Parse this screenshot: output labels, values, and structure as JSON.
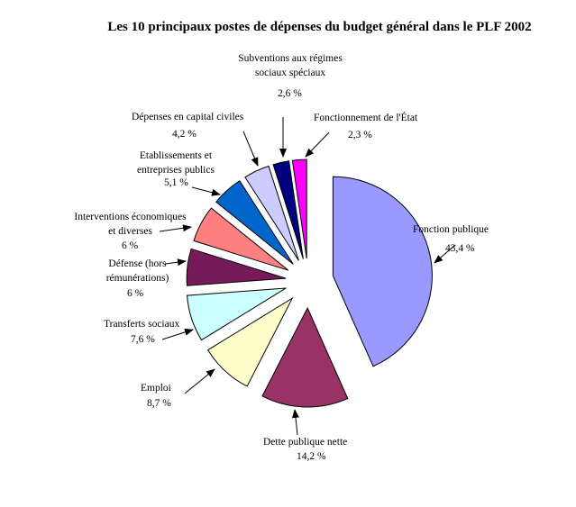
{
  "chart_data": {
    "type": "pie",
    "title": "Les 10 principaux postes de dépenses du budget général dans le PLF 2002",
    "unit": "%",
    "slices": [
      {
        "label": "Fonction publique",
        "value": 43.4,
        "value_label": "43,4 %",
        "color": "#9999FF"
      },
      {
        "label": "Dette publique nette",
        "value": 14.2,
        "value_label": "14,2 %",
        "color": "#993366"
      },
      {
        "label": "Emploi",
        "value": 8.7,
        "value_label": "8,7 %",
        "color": "#FFFFCC"
      },
      {
        "label": "Transferts sociaux",
        "value": 7.6,
        "value_label": "7,6 %",
        "color": "#CCFFFF"
      },
      {
        "label": "Défense (hors rémunérations)",
        "value": 6,
        "value_label": "6 %",
        "color": "#771A5A"
      },
      {
        "label": "Interventions économiques et diverses",
        "value": 6,
        "value_label": "6 %",
        "color": "#FF8080"
      },
      {
        "label": "Etablissements et entreprises publics",
        "value": 5.1,
        "value_label": "5,1 %",
        "color": "#0066CC"
      },
      {
        "label": "Dépenses en capital civiles",
        "value": 4.2,
        "value_label": "4,2 %",
        "color": "#CCCCFF"
      },
      {
        "label": "Subventions aux régimes sociaux spéciaux",
        "value": 2.6,
        "value_label": "2,6 %",
        "color": "#000080"
      },
      {
        "label": "Fonctionnement de l'État",
        "value": 2.3,
        "value_label": "2,3 %",
        "color": "#FF00FF"
      }
    ],
    "legend": "none",
    "exploded": true
  }
}
